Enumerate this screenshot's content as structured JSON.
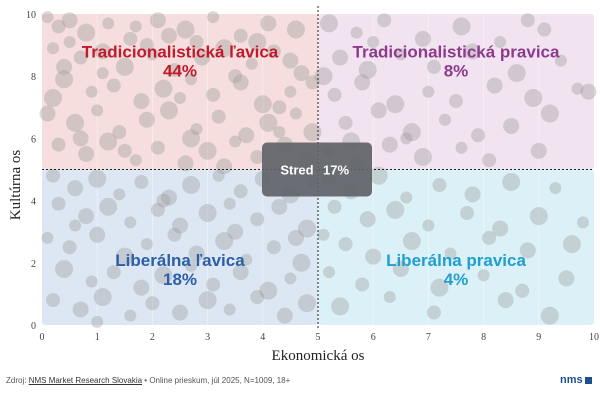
{
  "chart_data": {
    "type": "scatter",
    "xlabel": "Ekonomická os",
    "ylabel": "Kultúrna os",
    "xlim": [
      0,
      10
    ],
    "ylim": [
      0,
      10
    ],
    "x_ticks": [
      "0",
      "1",
      "2",
      "3",
      "4",
      "5",
      "6",
      "7",
      "8",
      "9",
      "10"
    ],
    "y_ticks": [
      "0",
      "2",
      "4",
      "6",
      "8",
      "10"
    ],
    "divider": {
      "x": 5,
      "y": 5
    },
    "quadrants": [
      {
        "id": "tl",
        "label": "Tradicionalistická ľavica",
        "value": "44%",
        "color": "#c01a2c",
        "bg": "#f6dede",
        "x_range": [
          0,
          5
        ],
        "y_range": [
          5,
          10
        ]
      },
      {
        "id": "tr",
        "label": "Tradicionalistická pravica",
        "value": "8%",
        "color": "#8e3a8c",
        "bg": "#f1e3f0",
        "x_range": [
          5,
          10
        ],
        "y_range": [
          5,
          10
        ]
      },
      {
        "id": "bl",
        "label": "Liberálna ľavica",
        "value": "18%",
        "color": "#2b5fa8",
        "bg": "#dde7f4",
        "x_range": [
          0,
          5
        ],
        "y_range": [
          0,
          5
        ]
      },
      {
        "id": "br",
        "label": "Liberálna pravica",
        "value": "4%",
        "color": "#1f9fcf",
        "bg": "#dcf0f7",
        "x_range": [
          5,
          10
        ],
        "y_range": [
          0,
          5
        ]
      }
    ],
    "center": {
      "label": "Stred",
      "value": "17%",
      "bg": "#5f6368",
      "text_color": "#ffffff"
    },
    "points": [
      [
        0.1,
        9.9
      ],
      [
        0.3,
        9.6
      ],
      [
        0.5,
        9.8
      ],
      [
        0.8,
        9.4
      ],
      [
        1.2,
        9.7
      ],
      [
        1.6,
        9.2
      ],
      [
        2.1,
        9.8
      ],
      [
        2.6,
        9.5
      ],
      [
        3.1,
        9.9
      ],
      [
        3.6,
        9.3
      ],
      [
        4.1,
        9.7
      ],
      [
        4.6,
        9.5
      ],
      [
        0.2,
        8.9
      ],
      [
        0.7,
        8.6
      ],
      [
        1.1,
        8.8
      ],
      [
        1.5,
        8.3
      ],
      [
        2.0,
        8.7
      ],
      [
        2.4,
        8.2
      ],
      [
        2.9,
        8.6
      ],
      [
        3.3,
        8.9
      ],
      [
        3.8,
        8.4
      ],
      [
        4.2,
        8.8
      ],
      [
        4.7,
        8.1
      ],
      [
        0.4,
        7.9
      ],
      [
        0.9,
        7.5
      ],
      [
        1.3,
        7.7
      ],
      [
        1.8,
        7.2
      ],
      [
        2.2,
        7.6
      ],
      [
        2.7,
        7.9
      ],
      [
        3.1,
        7.4
      ],
      [
        3.6,
        7.8
      ],
      [
        4.0,
        7.1
      ],
      [
        4.5,
        7.5
      ],
      [
        4.9,
        7.8
      ],
      [
        0.1,
        6.8
      ],
      [
        0.6,
        6.5
      ],
      [
        1.0,
        6.9
      ],
      [
        1.4,
        6.2
      ],
      [
        1.9,
        6.6
      ],
      [
        2.3,
        6.9
      ],
      [
        2.8,
        6.3
      ],
      [
        3.2,
        6.7
      ],
      [
        3.7,
        6.1
      ],
      [
        4.1,
        6.5
      ],
      [
        4.6,
        6.8
      ],
      [
        0.3,
        5.8
      ],
      [
        0.8,
        5.5
      ],
      [
        1.2,
        5.9
      ],
      [
        1.7,
        5.3
      ],
      [
        2.1,
        5.7
      ],
      [
        2.6,
        5.2
      ],
      [
        3.0,
        5.6
      ],
      [
        3.5,
        5.9
      ],
      [
        3.9,
        5.4
      ],
      [
        4.4,
        5.8
      ],
      [
        4.8,
        5.3
      ],
      [
        0.5,
        9.1
      ],
      [
        1.9,
        9.0
      ],
      [
        2.3,
        9.3
      ],
      [
        3.9,
        9.1
      ],
      [
        1.1,
        8.1
      ],
      [
        3.5,
        8.0
      ],
      [
        4.5,
        8.5
      ],
      [
        0.2,
        7.3
      ],
      [
        2.5,
        7.3
      ],
      [
        4.3,
        7.0
      ],
      [
        0.7,
        6.0
      ],
      [
        2.7,
        6.0
      ],
      [
        4.3,
        6.2
      ],
      [
        1.5,
        5.6
      ],
      [
        3.3,
        5.1
      ],
      [
        4.9,
        6.2
      ],
      [
        1.7,
        9.6
      ],
      [
        2.8,
        9.1
      ],
      [
        0.4,
        8.3
      ],
      [
        5.2,
        9.7
      ],
      [
        5.7,
        9.4
      ],
      [
        6.2,
        9.8
      ],
      [
        6.9,
        9.2
      ],
      [
        7.6,
        9.6
      ],
      [
        8.3,
        9.1
      ],
      [
        9.1,
        9.5
      ],
      [
        5.4,
        8.6
      ],
      [
        5.9,
        8.2
      ],
      [
        6.5,
        8.7
      ],
      [
        7.1,
        8.3
      ],
      [
        7.8,
        8.8
      ],
      [
        8.6,
        8.1
      ],
      [
        9.4,
        8.5
      ],
      [
        5.3,
        7.4
      ],
      [
        5.8,
        7.8
      ],
      [
        6.4,
        7.1
      ],
      [
        7.0,
        7.5
      ],
      [
        7.5,
        7.2
      ],
      [
        8.2,
        7.7
      ],
      [
        8.9,
        7.3
      ],
      [
        9.7,
        7.6
      ],
      [
        5.5,
        6.5
      ],
      [
        6.1,
        6.9
      ],
      [
        6.7,
        6.2
      ],
      [
        7.3,
        6.6
      ],
      [
        7.9,
        6.1
      ],
      [
        8.5,
        6.4
      ],
      [
        9.2,
        6.8
      ],
      [
        5.2,
        5.6
      ],
      [
        5.7,
        5.2
      ],
      [
        6.3,
        5.8
      ],
      [
        6.9,
        5.4
      ],
      [
        7.6,
        5.7
      ],
      [
        8.1,
        5.3
      ],
      [
        9.0,
        5.6
      ],
      [
        5.1,
        8.0
      ],
      [
        6.0,
        9.1
      ],
      [
        8.8,
        9.8
      ],
      [
        9.9,
        7.5
      ],
      [
        5.6,
        5.9
      ],
      [
        6.6,
        6.0
      ],
      [
        0.2,
        4.8
      ],
      [
        0.6,
        4.4
      ],
      [
        1.0,
        4.7
      ],
      [
        1.4,
        4.2
      ],
      [
        1.8,
        4.6
      ],
      [
        2.3,
        4.1
      ],
      [
        2.7,
        4.5
      ],
      [
        3.2,
        4.8
      ],
      [
        3.6,
        4.3
      ],
      [
        4.0,
        4.7
      ],
      [
        4.5,
        4.2
      ],
      [
        4.9,
        4.6
      ],
      [
        0.3,
        3.9
      ],
      [
        0.8,
        3.5
      ],
      [
        1.2,
        3.8
      ],
      [
        1.6,
        3.3
      ],
      [
        2.1,
        3.7
      ],
      [
        2.5,
        3.2
      ],
      [
        3.0,
        3.6
      ],
      [
        3.4,
        3.9
      ],
      [
        3.9,
        3.4
      ],
      [
        4.3,
        3.8
      ],
      [
        4.8,
        3.1
      ],
      [
        0.1,
        2.8
      ],
      [
        0.5,
        2.5
      ],
      [
        1.0,
        2.9
      ],
      [
        1.5,
        2.2
      ],
      [
        1.9,
        2.6
      ],
      [
        2.4,
        2.9
      ],
      [
        2.8,
        2.3
      ],
      [
        3.3,
        2.7
      ],
      [
        3.7,
        2.1
      ],
      [
        4.2,
        2.5
      ],
      [
        4.6,
        2.8
      ],
      [
        0.4,
        1.8
      ],
      [
        0.9,
        1.4
      ],
      [
        1.3,
        1.7
      ],
      [
        1.8,
        1.2
      ],
      [
        2.2,
        1.6
      ],
      [
        2.7,
        1.9
      ],
      [
        3.1,
        1.3
      ],
      [
        3.6,
        1.7
      ],
      [
        4.1,
        1.1
      ],
      [
        4.5,
        1.5
      ],
      [
        0.2,
        0.8
      ],
      [
        0.7,
        0.5
      ],
      [
        1.1,
        0.9
      ],
      [
        1.6,
        0.3
      ],
      [
        2.0,
        0.7
      ],
      [
        2.5,
        0.4
      ],
      [
        3.0,
        0.8
      ],
      [
        3.4,
        0.5
      ],
      [
        3.9,
        0.9
      ],
      [
        4.4,
        0.3
      ],
      [
        4.8,
        0.7
      ],
      [
        1.0,
        0.1
      ],
      [
        2.2,
        4.0
      ],
      [
        3.5,
        3.0
      ],
      [
        4.7,
        2.0
      ],
      [
        0.6,
        3.2
      ],
      [
        5.2,
        4.7
      ],
      [
        5.6,
        4.3
      ],
      [
        6.1,
        4.8
      ],
      [
        6.6,
        4.1
      ],
      [
        7.2,
        4.5
      ],
      [
        7.8,
        4.2
      ],
      [
        8.5,
        4.6
      ],
      [
        9.3,
        4.4
      ],
      [
        5.3,
        3.8
      ],
      [
        5.9,
        3.4
      ],
      [
        6.4,
        3.7
      ],
      [
        7.0,
        3.2
      ],
      [
        7.7,
        3.6
      ],
      [
        8.3,
        3.1
      ],
      [
        9.0,
        3.5
      ],
      [
        9.8,
        3.3
      ],
      [
        5.5,
        2.6
      ],
      [
        6.0,
        2.2
      ],
      [
        6.7,
        2.7
      ],
      [
        7.4,
        2.3
      ],
      [
        8.1,
        2.8
      ],
      [
        8.8,
        2.4
      ],
      [
        9.6,
        2.6
      ],
      [
        5.2,
        1.7
      ],
      [
        5.8,
        1.3
      ],
      [
        6.5,
        1.8
      ],
      [
        7.2,
        1.2
      ],
      [
        8.0,
        1.6
      ],
      [
        8.7,
        1.1
      ],
      [
        9.5,
        1.5
      ],
      [
        5.4,
        0.6
      ],
      [
        6.3,
        0.9
      ],
      [
        7.1,
        0.4
      ],
      [
        8.4,
        0.8
      ],
      [
        9.2,
        0.3
      ],
      [
        5.1,
        2.9
      ]
    ]
  },
  "source": {
    "prefix": "Zdroj:",
    "link": "NMS Market Research Slovakia",
    "rest": "• Online prieskum, júl 2025, N=1009, 18+"
  },
  "logo": {
    "text": "nms"
  }
}
